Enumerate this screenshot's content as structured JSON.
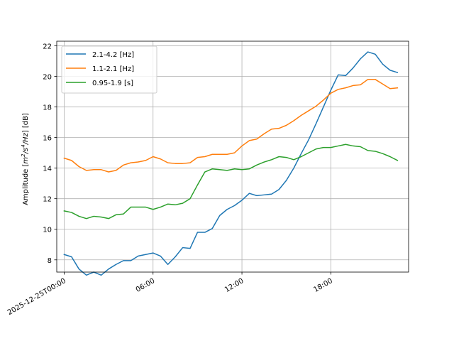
{
  "chart_data": {
    "type": "line",
    "ylabel_prefix": "Amplitude [",
    "ylabel_suffix": "] [dB]",
    "ylabel_unit_parts": [
      {
        "text": "m",
        "sup": false
      },
      {
        "text": "2",
        "sup": true
      },
      {
        "text": "/s",
        "sup": false
      },
      {
        "text": "4",
        "sup": true
      },
      {
        "text": "/Hz",
        "sup": false
      }
    ],
    "xlabel": "",
    "title": "",
    "xlim": [
      -0.5,
      23.25
    ],
    "ylim": [
      7.2,
      22.3
    ],
    "grid": true,
    "legend_position": "upper-left",
    "x_ticks": [
      {
        "x": 0,
        "label": "2025-12-25T00:00"
      },
      {
        "x": 6,
        "label": "06:00"
      },
      {
        "x": 12,
        "label": "12:00"
      },
      {
        "x": 18,
        "label": "18:00"
      }
    ],
    "y_ticks": [
      8,
      10,
      12,
      14,
      16,
      18,
      20,
      22
    ],
    "series": [
      {
        "name": "2.1-4.2 [Hz]",
        "color": "#1f77b4",
        "x": [
          0,
          0.5,
          1,
          1.5,
          2,
          2.5,
          3,
          3.5,
          4,
          4.5,
          5,
          5.5,
          6,
          6.5,
          7,
          7.5,
          8,
          8.5,
          9,
          9.5,
          10,
          10.5,
          11,
          11.5,
          12,
          12.5,
          13,
          13.5,
          14,
          14.5,
          15,
          15.5,
          16,
          16.5,
          17,
          17.5,
          18,
          18.5,
          19,
          19.5,
          20,
          20.5,
          21,
          21.5,
          22,
          22.5
        ],
        "y": [
          8.35,
          8.2,
          7.4,
          7.0,
          7.2,
          7.0,
          7.4,
          7.7,
          7.95,
          7.95,
          8.25,
          8.35,
          8.45,
          8.25,
          7.7,
          8.2,
          8.8,
          8.75,
          9.8,
          9.8,
          10.05,
          10.9,
          11.3,
          11.55,
          11.9,
          12.35,
          12.2,
          12.25,
          12.3,
          12.6,
          13.2,
          14.0,
          14.95,
          15.85,
          16.9,
          18.0,
          19.1,
          20.1,
          20.05,
          20.55,
          21.15,
          21.6,
          21.45,
          20.8,
          20.4,
          20.25
        ]
      },
      {
        "name": "1.1-2.1 [Hz]",
        "color": "#ff7f0e",
        "x": [
          0,
          0.5,
          1,
          1.5,
          2,
          2.5,
          3,
          3.5,
          4,
          4.5,
          5,
          5.5,
          6,
          6.5,
          7,
          7.5,
          8,
          8.5,
          9,
          9.5,
          10,
          10.5,
          11,
          11.5,
          12,
          12.5,
          13,
          13.5,
          14,
          14.5,
          15,
          15.5,
          16,
          16.5,
          17,
          17.5,
          18,
          18.5,
          19,
          19.5,
          20,
          20.5,
          21,
          21.5,
          22,
          22.5
        ],
        "y": [
          14.65,
          14.5,
          14.1,
          13.85,
          13.9,
          13.9,
          13.75,
          13.85,
          14.2,
          14.35,
          14.4,
          14.5,
          14.75,
          14.6,
          14.35,
          14.3,
          14.3,
          14.35,
          14.7,
          14.75,
          14.9,
          14.9,
          14.9,
          15.0,
          15.45,
          15.8,
          15.9,
          16.25,
          16.55,
          16.6,
          16.8,
          17.1,
          17.45,
          17.75,
          18.05,
          18.45,
          18.9,
          19.15,
          19.25,
          19.4,
          19.45,
          19.8,
          19.8,
          19.5,
          19.2,
          19.25
        ]
      },
      {
        "name": "0.95-1.9 [s]",
        "color": "#2ca02c",
        "x": [
          0,
          0.5,
          1,
          1.5,
          2,
          2.5,
          3,
          3.5,
          4,
          4.5,
          5,
          5.5,
          6,
          6.5,
          7,
          7.5,
          8,
          8.5,
          9,
          9.5,
          10,
          10.5,
          11,
          11.5,
          12,
          12.5,
          13,
          13.5,
          14,
          14.5,
          15,
          15.5,
          16,
          16.5,
          17,
          17.5,
          18,
          18.5,
          19,
          19.5,
          20,
          20.5,
          21,
          21.5,
          22,
          22.5
        ],
        "y": [
          11.2,
          11.1,
          10.85,
          10.7,
          10.85,
          10.8,
          10.7,
          10.95,
          11.0,
          11.45,
          11.45,
          11.45,
          11.3,
          11.45,
          11.65,
          11.6,
          11.7,
          12.0,
          12.9,
          13.75,
          13.95,
          13.9,
          13.85,
          13.95,
          13.9,
          13.95,
          14.2,
          14.4,
          14.55,
          14.75,
          14.7,
          14.55,
          14.75,
          15.0,
          15.25,
          15.35,
          15.35,
          15.45,
          15.55,
          15.45,
          15.4,
          15.15,
          15.1,
          14.95,
          14.75,
          14.5
        ]
      }
    ]
  }
}
